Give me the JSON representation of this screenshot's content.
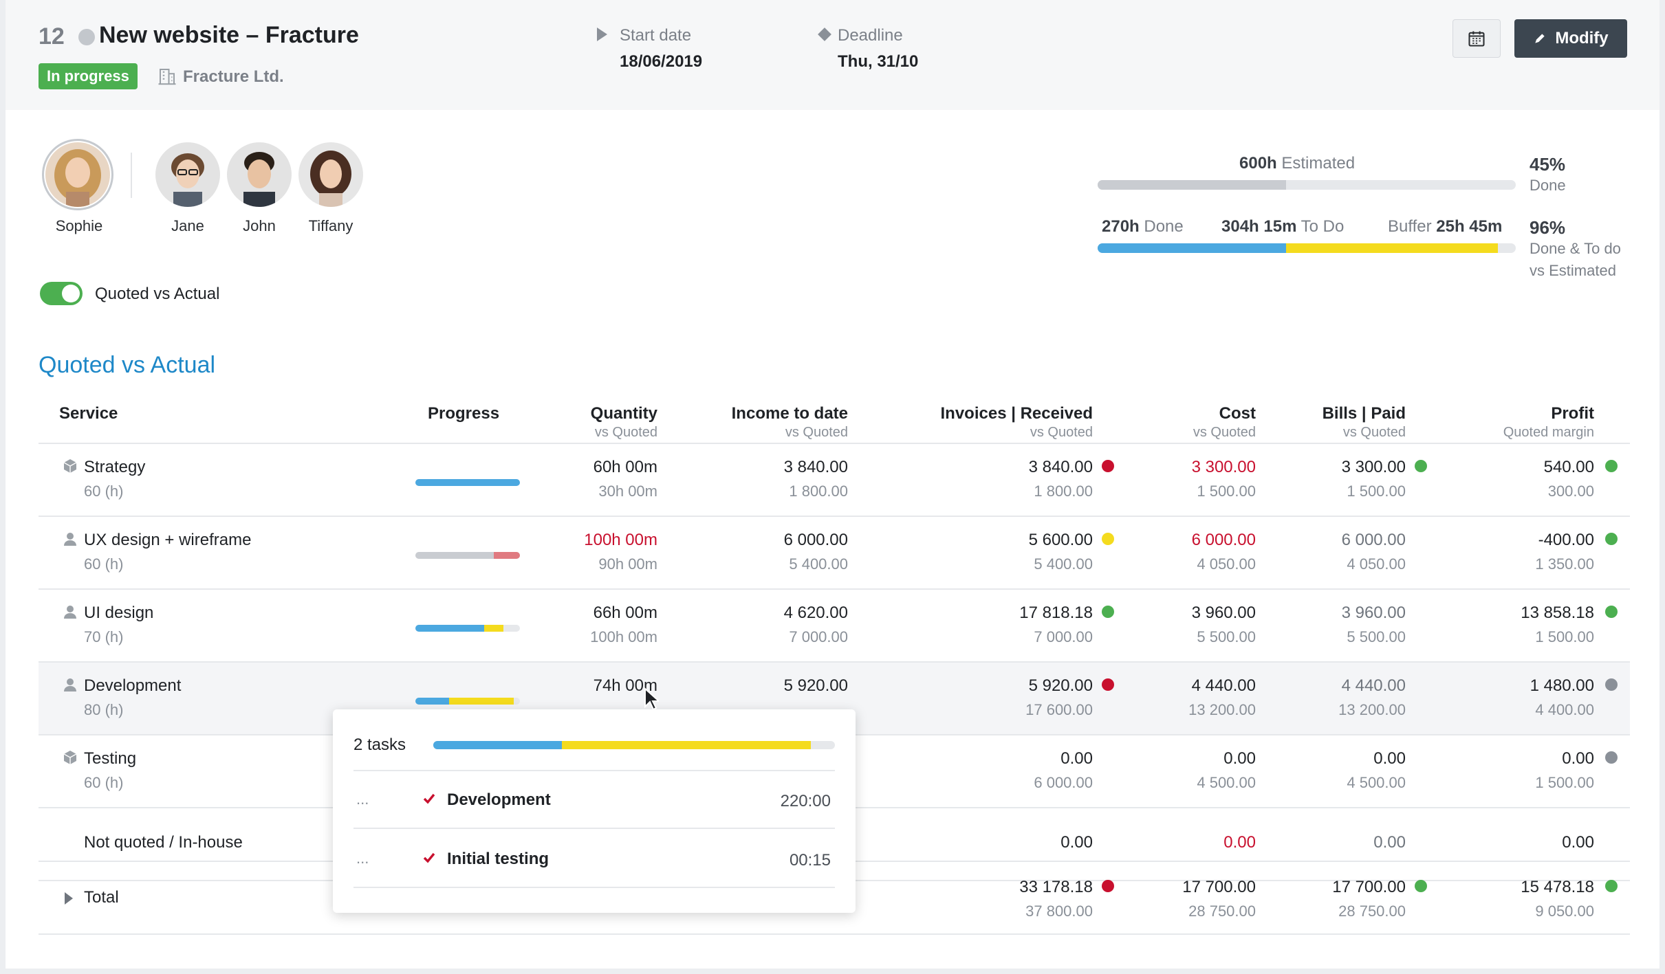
{
  "header": {
    "project_number": "12",
    "project_title": "New website – Fracture",
    "status": "In progress",
    "client": "Fracture Ltd.",
    "start_label": "Start date",
    "start_value": "18/06/2019",
    "deadline_label": "Deadline",
    "deadline_value": "Thu, 31/10",
    "modify_label": "Modify",
    "calendar_icon": "calendar-icon",
    "colors": {
      "status_badge": "#4caf50",
      "modify_button": "#3c4650"
    }
  },
  "people": [
    {
      "name": "Sophie"
    },
    {
      "name": "Jane"
    },
    {
      "name": "John"
    },
    {
      "name": "Tiffany"
    }
  ],
  "toggle": {
    "label": "Quoted vs Actual",
    "on": true
  },
  "summary": {
    "estimated_value": "600h",
    "estimated_label": "Estimated",
    "estimated_fill": 0.45,
    "done_value": "270h",
    "done_label": "Done",
    "todo_value": "304h 15m",
    "todo_label": "To Do",
    "buffer_label": "Buffer",
    "buffer_value": "25h 45m",
    "pct_done": "45%",
    "pct_done_label": "Done",
    "pct_total": "96%",
    "pct_total_label_1": "Done & To do",
    "pct_total_label_2": "vs Estimated",
    "done_fill": 0.45,
    "todo_fill": 0.507,
    "colors": {
      "done": "#4ba8e0",
      "todo": "#f4db1e",
      "estimated": "#c9ccd1"
    }
  },
  "section_title": "Quoted vs Actual",
  "table": {
    "headers": {
      "service": "Service",
      "progress": "Progress",
      "quantity": "Quantity",
      "quantity_sub": "vs Quoted",
      "income": "Income to date",
      "income_sub": "vs Quoted",
      "invoices": "Invoices | Received",
      "invoices_sub": "vs Quoted",
      "cost": "Cost",
      "cost_sub": "vs Quoted",
      "bills": "Bills | Paid",
      "bills_sub": "vs Quoted",
      "profit": "Profit",
      "profit_sub": "Quoted margin"
    },
    "rows": [
      {
        "service": "Strategy",
        "hours": "60 (h)",
        "icon": "box-icon",
        "quantity": "60h 00m",
        "quantity_q": "30h 00m",
        "income": "3 840.00",
        "income_q": "1 800.00",
        "invoices": "3 840.00",
        "invoices_q": "1 800.00",
        "invoices_status": "#c8102e",
        "cost": "3 300.00",
        "cost_q": "1 500.00",
        "bills": "3 300.00",
        "bills_q": "1 500.00",
        "bills_status": "#4caf50",
        "profit": "540.00",
        "profit_q": "300.00",
        "profit_status": "#4caf50",
        "progress": {
          "blue": 1.0,
          "yellow": 0,
          "red": 0,
          "gray": 0
        }
      },
      {
        "service": "UX design + wireframe",
        "hours": "60 (h)",
        "icon": "user-icon",
        "quantity": "100h 00m",
        "quantity_q": "90h 00m",
        "income": "6 000.00",
        "income_q": "5 400.00",
        "invoices": "5 600.00",
        "invoices_q": "5 400.00",
        "invoices_status": "#f4db1e",
        "cost": "6 000.00",
        "cost_q": "4 050.00",
        "bills": "6 000.00",
        "bills_q": "4 050.00",
        "bills_status": "",
        "profit": "-400.00",
        "profit_q": "1 350.00",
        "profit_status": "#4caf50",
        "progress": {
          "blue": 0,
          "yellow": 0,
          "gray": 0.75,
          "red": 0.25
        }
      },
      {
        "service": "UI design",
        "hours": "70 (h)",
        "icon": "user-icon",
        "quantity": "66h 00m",
        "quantity_q": "100h 00m",
        "income": "4 620.00",
        "income_q": "7 000.00",
        "invoices": "17 818.18",
        "invoices_q": "7 000.00",
        "invoices_status": "#4caf50",
        "cost": "3 960.00",
        "cost_q": "5 500.00",
        "bills": "3 960.00",
        "bills_q": "5 500.00",
        "bills_status": "",
        "profit": "13 858.18",
        "profit_q": "1 500.00",
        "profit_status": "#4caf50",
        "progress": {
          "blue": 0.66,
          "yellow": 0.18,
          "red": 0,
          "gray": 0
        }
      },
      {
        "service": "Development",
        "hours": "80 (h)",
        "icon": "user-icon",
        "quantity": "74h 00m",
        "quantity_q": "",
        "income": "5 920.00",
        "income_q": "",
        "invoices": "5 920.00",
        "invoices_q": "17 600.00",
        "invoices_status": "#c8102e",
        "cost": "4 440.00",
        "cost_q": "13 200.00",
        "bills": "4 440.00",
        "bills_q": "13 200.00",
        "bills_status": "",
        "profit": "1 480.00",
        "profit_q": "4 400.00",
        "profit_status": "#8a9098",
        "progress": {
          "blue": 0.32,
          "yellow": 0.62,
          "red": 0,
          "gray": 0
        }
      },
      {
        "service": "Testing",
        "hours": "60 (h)",
        "icon": "box-icon",
        "quantity": "",
        "quantity_q": "",
        "income": "",
        "income_q": "",
        "invoices": "0.00",
        "invoices_q": "6 000.00",
        "invoices_status": "",
        "cost": "0.00",
        "cost_q": "4 500.00",
        "bills": "0.00",
        "bills_q": "4 500.00",
        "bills_status": "",
        "profit": "0.00",
        "profit_q": "1 500.00",
        "profit_status": "#8a9098",
        "progress": null
      },
      {
        "service": "Not quoted / In-house",
        "hours": "",
        "icon": "",
        "quantity": "",
        "quantity_q": "",
        "income": "",
        "income_q": "",
        "invoices": "0.00",
        "invoices_q": "",
        "invoices_status": "",
        "cost": "0.00",
        "cost_q": "",
        "bills": "0.00",
        "bills_q": "",
        "bills_status": "",
        "profit": "0.00",
        "profit_q": "",
        "profit_status": "",
        "progress": null
      }
    ],
    "total": {
      "label": "Total",
      "invoices": "33 178.18",
      "invoices_q": "37 800.00",
      "invoices_status": "#c8102e",
      "cost": "17 700.00",
      "cost_q": "28 750.00",
      "bills": "17 700.00",
      "bills_q": "28 750.00",
      "bills_status": "#4caf50",
      "profit": "15 478.18",
      "profit_q": "9 050.00",
      "profit_status": "#4caf50"
    }
  },
  "popover": {
    "count": "2 tasks",
    "bar": {
      "blue": 0.32,
      "yellow": 0.62
    },
    "tasks": [
      {
        "menu": "...",
        "name": "Development",
        "time": "220:00"
      },
      {
        "menu": "...",
        "name": "Initial testing",
        "time": "00:15"
      }
    ]
  }
}
